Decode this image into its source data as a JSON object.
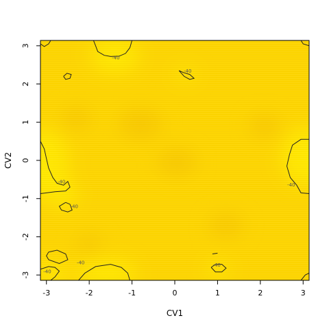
{
  "chart_data": {
    "type": "heatmap",
    "title": "",
    "xlabel": "CV1",
    "ylabel": "CV2",
    "xlim": [
      -3.14,
      3.14
    ],
    "ylim": [
      -3.14,
      3.14
    ],
    "x_ticks": [
      -3,
      -2,
      -1,
      0,
      1,
      2,
      3
    ],
    "y_ticks": [
      -3,
      -2,
      -1,
      0,
      1,
      2,
      3
    ],
    "colorscale": {
      "low": "#F7C500",
      "mid": "#FDD500",
      "high": "#FFE900"
    },
    "surface_description_values": {
      "base_level": -42,
      "contour_level": -40
    },
    "bright_regions": [
      {
        "cx": 3.05,
        "cy": 0.1,
        "rx": 0.55,
        "ry": 0.75,
        "level": -39
      },
      {
        "cx": -3.05,
        "cy": -0.1,
        "rx": 0.55,
        "ry": 0.9,
        "level": -39.5
      },
      {
        "cx": -1.4,
        "cy": 2.75,
        "rx": 0.55,
        "ry": 0.45,
        "level": -39.5
      },
      {
        "cx": -1.6,
        "cy": -2.95,
        "rx": 0.7,
        "ry": 0.35,
        "level": -39.5
      },
      {
        "cx": -2.9,
        "cy": -2.95,
        "rx": 0.35,
        "ry": 0.3,
        "level": -39.5
      },
      {
        "cx": 1.0,
        "cy": -2.85,
        "rx": 0.25,
        "ry": 0.2,
        "level": -39.8
      },
      {
        "cx": 0.25,
        "cy": 2.25,
        "rx": 0.25,
        "ry": 0.15,
        "level": -39.8
      },
      {
        "cx": -2.6,
        "cy": -0.9,
        "rx": 0.3,
        "ry": 0.35,
        "level": -39.8
      }
    ],
    "dark_regions": [
      {
        "cx": -0.8,
        "cy": 0.95,
        "rx": 0.5,
        "ry": 0.4,
        "level": -43
      },
      {
        "cx": 0.05,
        "cy": -0.05,
        "rx": 0.45,
        "ry": 0.35,
        "level": -42.8
      },
      {
        "cx": -2.3,
        "cy": 1.1,
        "rx": 0.35,
        "ry": 0.3,
        "level": -42.6
      },
      {
        "cx": 2.1,
        "cy": 0.9,
        "rx": 0.35,
        "ry": 0.3,
        "level": -42.6
      },
      {
        "cx": -1.5,
        "cy": 2.85,
        "rx": 0.3,
        "ry": 0.2,
        "level": -42.5
      },
      {
        "cx": 1.2,
        "cy": -1.7,
        "rx": 0.4,
        "ry": 0.3,
        "level": -42.6
      },
      {
        "cx": -2.0,
        "cy": -2.2,
        "rx": 0.3,
        "ry": 0.25,
        "level": -42.5
      }
    ],
    "contours": [
      {
        "level": "-40",
        "points": [
          [
            -1.9,
            3.14
          ],
          [
            -1.85,
            3.0
          ],
          [
            -1.8,
            2.85
          ],
          [
            -1.65,
            2.75
          ],
          [
            -1.5,
            2.72
          ],
          [
            -1.3,
            2.73
          ],
          [
            -1.15,
            2.8
          ],
          [
            -1.05,
            2.95
          ],
          [
            -1.0,
            3.14
          ]
        ]
      },
      {
        "level": "-40",
        "points": [
          [
            2.95,
            3.14
          ],
          [
            3.0,
            3.05
          ],
          [
            3.14,
            3.0
          ]
        ]
      },
      {
        "level": "-40",
        "points": [
          [
            -3.14,
            3.05
          ],
          [
            -3.05,
            2.98
          ],
          [
            -2.95,
            3.05
          ],
          [
            -2.9,
            3.14
          ]
        ]
      },
      {
        "level": "-40",
        "points": [
          [
            -2.6,
            2.2
          ],
          [
            -2.52,
            2.28
          ],
          [
            -2.42,
            2.25
          ],
          [
            -2.45,
            2.15
          ],
          [
            -2.55,
            2.12
          ],
          [
            -2.6,
            2.2
          ]
        ]
      },
      {
        "level": "-40",
        "points": [
          [
            0.1,
            2.35
          ],
          [
            0.2,
            2.3
          ],
          [
            0.35,
            2.25
          ],
          [
            0.45,
            2.15
          ],
          [
            0.35,
            2.12
          ],
          [
            0.22,
            2.2
          ],
          [
            0.1,
            2.35
          ]
        ]
      },
      {
        "level": "-40",
        "points": [
          [
            3.14,
            0.55
          ],
          [
            2.95,
            0.55
          ],
          [
            2.75,
            0.4
          ],
          [
            2.68,
            0.15
          ],
          [
            2.62,
            -0.15
          ],
          [
            2.7,
            -0.45
          ],
          [
            2.85,
            -0.65
          ],
          [
            2.95,
            -0.85
          ],
          [
            3.14,
            -0.87
          ]
        ]
      },
      {
        "level": "-40",
        "points": [
          [
            -3.14,
            0.5
          ],
          [
            -3.05,
            0.3
          ],
          [
            -3.0,
            0.05
          ],
          [
            -2.95,
            -0.2
          ],
          [
            -2.85,
            -0.45
          ],
          [
            -2.75,
            -0.6
          ],
          [
            -2.6,
            -0.65
          ],
          [
            -2.5,
            -0.55
          ],
          [
            -2.45,
            -0.7
          ],
          [
            -2.55,
            -0.8
          ],
          [
            -2.8,
            -0.82
          ],
          [
            -3.14,
            -0.87
          ]
        ]
      },
      {
        "level": "-40",
        "points": [
          [
            -2.55,
            -1.1
          ],
          [
            -2.45,
            -1.15
          ],
          [
            -2.4,
            -1.3
          ],
          [
            -2.5,
            -1.35
          ],
          [
            -2.65,
            -1.3
          ],
          [
            -2.7,
            -1.2
          ],
          [
            -2.55,
            -1.1
          ]
        ]
      },
      {
        "level": "-40",
        "points": [
          [
            -2.95,
            -2.4
          ],
          [
            -2.75,
            -2.35
          ],
          [
            -2.55,
            -2.45
          ],
          [
            -2.5,
            -2.6
          ],
          [
            -2.7,
            -2.7
          ],
          [
            -2.95,
            -2.6
          ],
          [
            -3.0,
            -2.5
          ],
          [
            -2.95,
            -2.4
          ]
        ]
      },
      {
        "level": "-40",
        "points": [
          [
            -3.14,
            -2.85
          ],
          [
            -2.95,
            -2.78
          ],
          [
            -2.8,
            -2.8
          ],
          [
            -2.7,
            -2.9
          ],
          [
            -2.8,
            -3.05
          ],
          [
            -2.9,
            -3.14
          ]
        ]
      },
      {
        "level": "-40",
        "points": [
          [
            -2.25,
            -3.14
          ],
          [
            -2.1,
            -2.95
          ],
          [
            -1.85,
            -2.78
          ],
          [
            -1.5,
            -2.72
          ],
          [
            -1.25,
            -2.8
          ],
          [
            -1.1,
            -2.95
          ],
          [
            -1.05,
            -3.14
          ]
        ]
      },
      {
        "level": "-40",
        "points": [
          [
            0.85,
            -2.8
          ],
          [
            0.95,
            -2.72
          ],
          [
            1.1,
            -2.72
          ],
          [
            1.2,
            -2.82
          ],
          [
            1.1,
            -2.92
          ],
          [
            0.95,
            -2.92
          ],
          [
            0.85,
            -2.8
          ]
        ]
      },
      {
        "level": "-40",
        "points": [
          [
            0.88,
            -2.45
          ],
          [
            1.0,
            -2.43
          ]
        ]
      },
      {
        "level": "-40",
        "points": [
          [
            2.95,
            -3.14
          ],
          [
            3.05,
            -3.0
          ],
          [
            3.14,
            -2.95
          ]
        ]
      }
    ],
    "contour_labels": [
      {
        "text": "-40",
        "x": -1.38,
        "y": 2.65
      },
      {
        "text": "-40",
        "x": 0.3,
        "y": 2.3
      },
      {
        "text": "-40",
        "x": 2.72,
        "y": -0.68
      },
      {
        "text": "-40",
        "x": -2.65,
        "y": -0.6
      },
      {
        "text": "-40",
        "x": -2.35,
        "y": -1.25
      },
      {
        "text": "-40",
        "x": -2.2,
        "y": -2.72
      },
      {
        "text": "-40",
        "x": 0.98,
        "y": -2.78
      },
      {
        "text": "-40",
        "x": -2.98,
        "y": -2.95
      }
    ]
  },
  "axes": {
    "x_tick_labels": [
      "-3",
      "-2",
      "-1",
      "0",
      "1",
      "2",
      "3"
    ],
    "y_tick_labels": [
      "-3",
      "-2",
      "-1",
      "0",
      "1",
      "2",
      "3"
    ]
  }
}
